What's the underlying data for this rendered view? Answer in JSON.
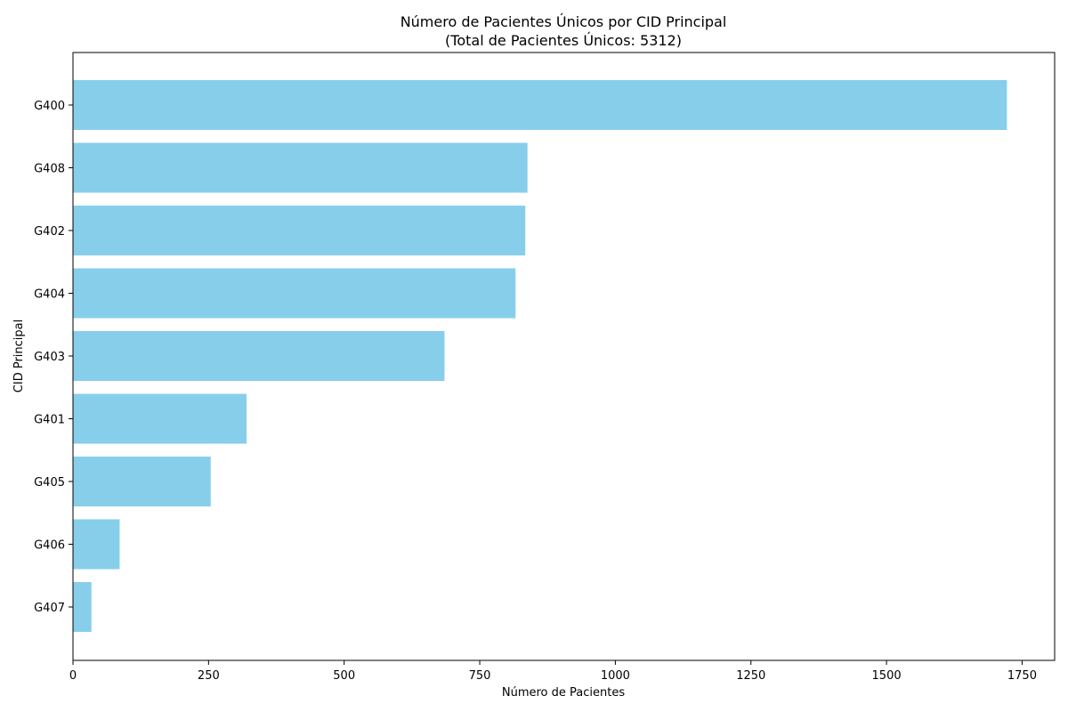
{
  "chart_data": {
    "type": "bar",
    "orientation": "horizontal",
    "title": "Número de Pacientes Únicos por CID Principal",
    "subtitle": "(Total de Pacientes Únicos: 5312)",
    "xlabel": "Número de Pacientes",
    "ylabel": "CID Principal",
    "categories": [
      "G400",
      "G408",
      "G402",
      "G404",
      "G403",
      "G401",
      "G405",
      "G406",
      "G407"
    ],
    "values": [
      1722,
      838,
      834,
      816,
      685,
      320,
      254,
      86,
      34
    ],
    "xlim": [
      0,
      1810
    ],
    "xticks": [
      0,
      250,
      500,
      750,
      1000,
      1250,
      1500,
      1750
    ],
    "bar_color": "#87CEEB",
    "grid": false,
    "legend": "none"
  }
}
